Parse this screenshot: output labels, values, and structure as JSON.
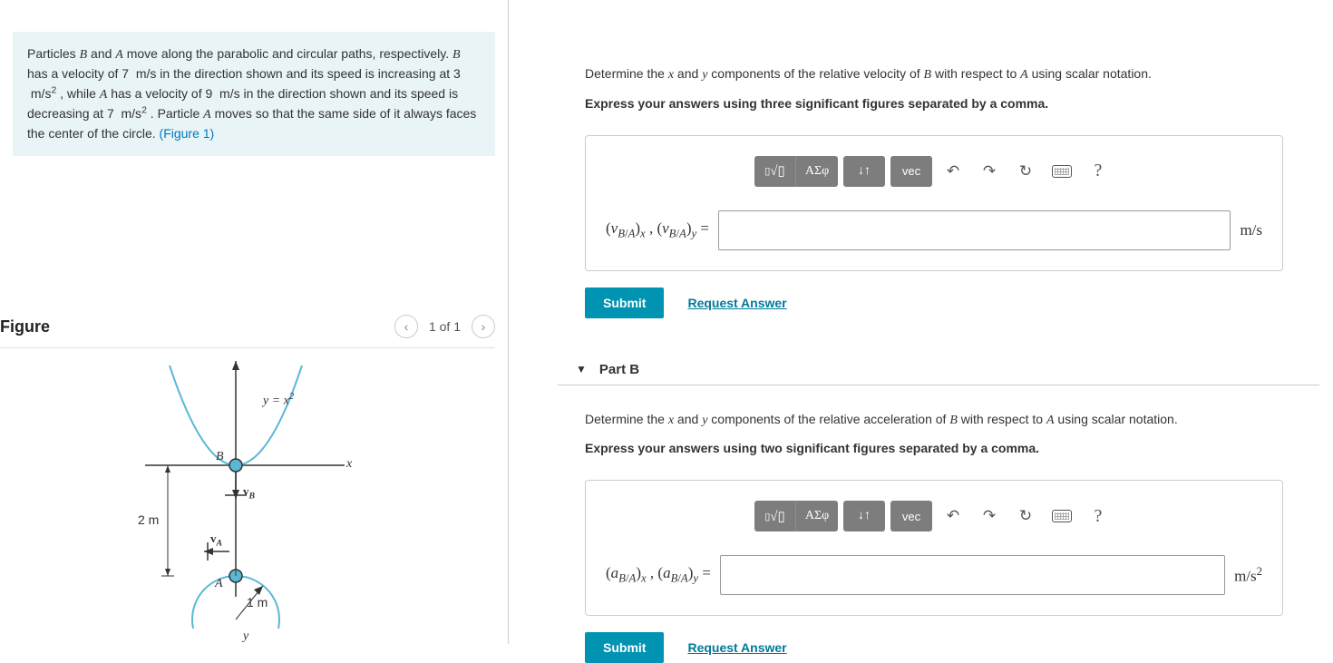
{
  "problem": {
    "text_html": "Particles <span class='mi'>B</span> and <span class='mi'>A</span> move along the parabolic and circular paths, respectively. <span class='mi'>B</span> has a velocity of 7 &nbsp;m/s in the direction shown and its speed is increasing at 3 &nbsp;m/s<sup>2</sup> , while <span class='mi'>A</span> has a velocity of 9 &nbsp;m/s in the direction shown and its speed is decreasing at 7 &nbsp;m/s<sup>2</sup> . Particle <span class='mi'>A</span> moves so that the same side of it always faces the center of the circle. ",
    "figure_link": "(Figure 1)"
  },
  "figure_section": {
    "title": "Figure",
    "counter": "1 of 1",
    "labels": {
      "y_axis": "y",
      "x_axis": "x",
      "curve": "y = x²",
      "B": "B",
      "vB": "v",
      "vB_sub": "B",
      "A": "A",
      "vA": "v",
      "vA_sub": "A",
      "height": "2 m",
      "radius": "1 m"
    }
  },
  "partA": {
    "prompt_html": "Determine the <span class='mi'>x</span> and <span class='mi'>y</span> components of the relative velocity of <span class='mi'>B</span> with respect to <span class='mi'>A</span> using scalar notation.",
    "instruction": "Express your answers using three significant figures separated by a comma.",
    "label_html": "(<span class='mi'>v</span><sub><span class='mi'>B</span>/<span class='mi'>A</span></sub>)<sub><span class='mi'>x</span></sub> , (<span class='mi'>v</span><sub><span class='mi'>B</span>/<span class='mi'>A</span></sub>)<sub><span class='mi'>y</span></sub> =",
    "unit": "m/s",
    "submit": "Submit",
    "request": "Request Answer"
  },
  "partB": {
    "header": "Part B",
    "prompt_html": "Determine the <span class='mi'>x</span> and <span class='mi'>y</span> components of the relative acceleration of <span class='mi'>B</span> with respect to <span class='mi'>A</span> using scalar notation.",
    "instruction": "Express your answers using two significant figures separated by a comma.",
    "label_html": "(<span class='mi'>a</span><sub><span class='mi'>B</span>/<span class='mi'>A</span></sub>)<sub><span class='mi'>x</span></sub> , (<span class='mi'>a</span><sub><span class='mi'>B</span>/<span class='mi'>A</span></sub>)<sub><span class='mi'>y</span></sub> =",
    "unit_html": "m/s<sup>2</sup>",
    "submit": "Submit",
    "request": "Request Answer"
  },
  "toolbar": {
    "templates": "▢√▢",
    "greek": "ΑΣφ",
    "updown": "↓↑",
    "vec": "vec",
    "undo": "↶",
    "redo": "↷",
    "reset": "↻",
    "help": "?"
  },
  "colors": {
    "info_bg": "#e8f4f6",
    "link": "#0077c2",
    "submit": "#0093b2",
    "toolbtn": "#7d7d7d",
    "curve": "#5ab8d6"
  }
}
